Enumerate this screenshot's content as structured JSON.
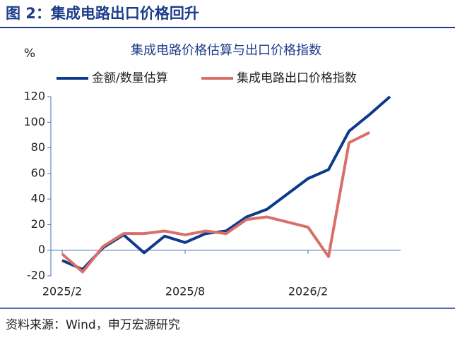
{
  "header": {
    "title": "图 2：集成电路出口价格回升"
  },
  "chart_data": {
    "type": "line",
    "title": "集成电路价格估算与出口价格指数",
    "y_label": "%",
    "categories": [
      "2025/2",
      null,
      null,
      null,
      null,
      null,
      "2025/8",
      null,
      null,
      null,
      null,
      null,
      "2026/2",
      null,
      null,
      null,
      null
    ],
    "series": [
      {
        "name": "金额/数量估算",
        "color": "#0c3a8c",
        "values": [
          -8,
          -15,
          2,
          12,
          -2,
          11,
          6,
          13,
          15,
          26,
          32,
          44,
          56,
          63,
          93,
          106,
          120
        ]
      },
      {
        "name": "集成电路出口价格指数",
        "color": "#d96f69",
        "values": [
          -3,
          -17,
          3,
          13,
          13,
          15,
          12,
          15,
          13,
          24,
          26,
          22,
          18,
          -5,
          84,
          92,
          null
        ]
      }
    ],
    "ylim": [
      -20,
      120
    ],
    "yticks": [
      -20,
      0,
      20,
      40,
      60,
      80,
      100,
      120
    ],
    "legend": "top"
  },
  "footer": {
    "source": "资料来源：Wind，申万宏源研究"
  }
}
